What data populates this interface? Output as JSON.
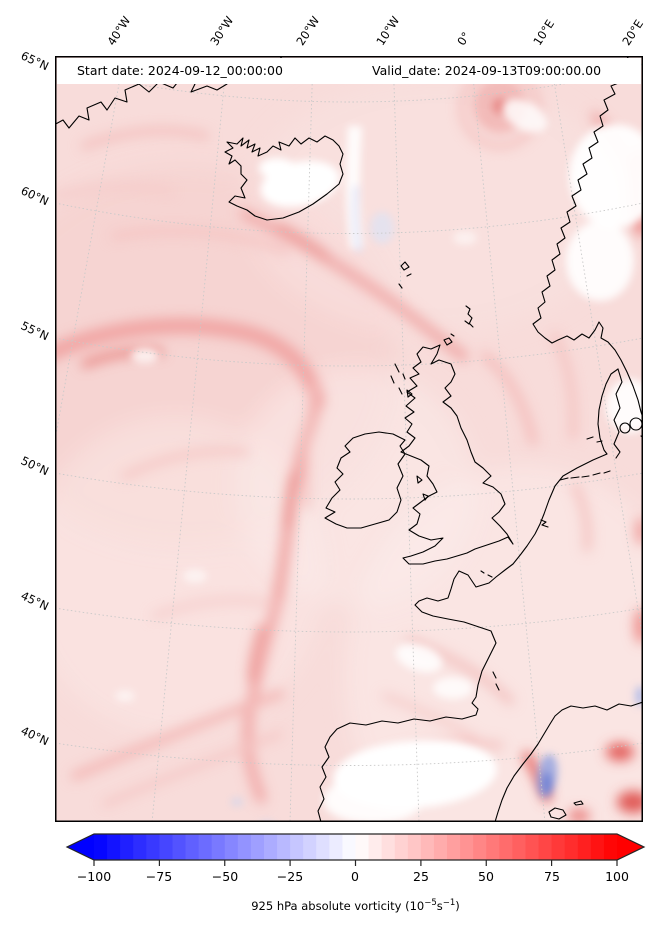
{
  "header": {
    "start_date": "Start date: 2024-09-12_00:00:00",
    "valid_date": "Valid_date: 2024-09-13T09:00:00.00"
  },
  "axes": {
    "top_ticks": [
      "40°W",
      "30°W",
      "20°W",
      "10°W",
      "0°",
      "10°E",
      "20°E"
    ],
    "left_ticks": [
      "65°N",
      "60°N",
      "55°N",
      "50°N",
      "45°N",
      "40°N"
    ]
  },
  "colorbar": {
    "min": -100,
    "max": 100,
    "step": 5,
    "tick_labels": [
      "−100",
      "−75",
      "−50",
      "−25",
      "0",
      "25",
      "50",
      "75",
      "100"
    ],
    "min_color": "#0000ff",
    "mid_color": "#ffffff",
    "max_color": "#ff0000",
    "label_prefix": "925 hPa absolute vorticity (10",
    "label_sup1": "−5",
    "label_mid": "s",
    "label_sup2": "−1",
    "label_suffix": ")"
  },
  "chart_data": {
    "type": "heatmap",
    "title": "925 hPa absolute vorticity (10⁻⁵s⁻¹)",
    "field": "925 hPa absolute vorticity",
    "units": "10⁻⁵ s⁻¹",
    "start_date": "2024-09-12_00:00:00",
    "valid_date": "2024-09-13T09:00:00.00",
    "colormap": "blue-white-red",
    "colorbar": {
      "range": [
        -100,
        100
      ],
      "tick_interval": 25,
      "level_step": 5,
      "extend": "both",
      "ticks": [
        -100,
        -75,
        -50,
        -25,
        0,
        25,
        50,
        75,
        100
      ]
    },
    "map": {
      "lon_gridlines": [
        "40°W",
        "30°W",
        "20°W",
        "10°W",
        "0°",
        "10°E",
        "20°E"
      ],
      "lat_gridlines": [
        "65°N",
        "60°N",
        "55°N",
        "50°N",
        "45°N",
        "40°N"
      ],
      "region": "North Atlantic / Western Europe",
      "dominant_value_sign": "weakly positive (pink) over most of domain",
      "notable_features": [
        "cyclonic vortex maximum near 5°W 64°N",
        "long sinuous positive-vorticity filament arcing from 40°W 55°N south to 45°N",
        "near-zero (white) field over Iceland, Scandinavia interior and Iberia",
        "strong positive band along Norwegian coast at map right edge",
        "red maxima and small negative (blue) pockets near Catalonia / Gulf of Lion"
      ]
    }
  }
}
